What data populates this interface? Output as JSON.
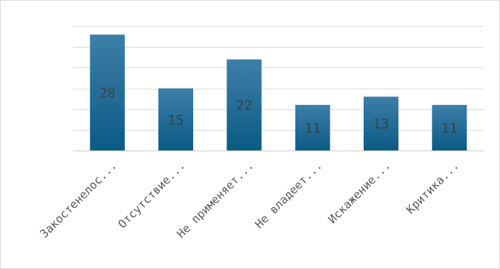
{
  "chart_data": {
    "type": "bar",
    "categories": [
      "Закостенелос...",
      "Отсутствие...",
      "Не применяет...",
      "Не владеет...",
      "Искажение...",
      "Критика..."
    ],
    "values": [
      28,
      15,
      22,
      11,
      13,
      11
    ],
    "data_labels": [
      "28",
      "15",
      "22",
      "11",
      "13",
      "11"
    ],
    "ylim": [
      0,
      30
    ],
    "y_tick_step": 5,
    "grid": true,
    "legend": "none",
    "colors": {
      "bar_top": "#3d7fa8",
      "bar_bottom": "#0b5b85",
      "grid": "#d9d9d9",
      "value_label": "#404040",
      "category_label": "#595959",
      "border": "#d9d9d9"
    }
  }
}
